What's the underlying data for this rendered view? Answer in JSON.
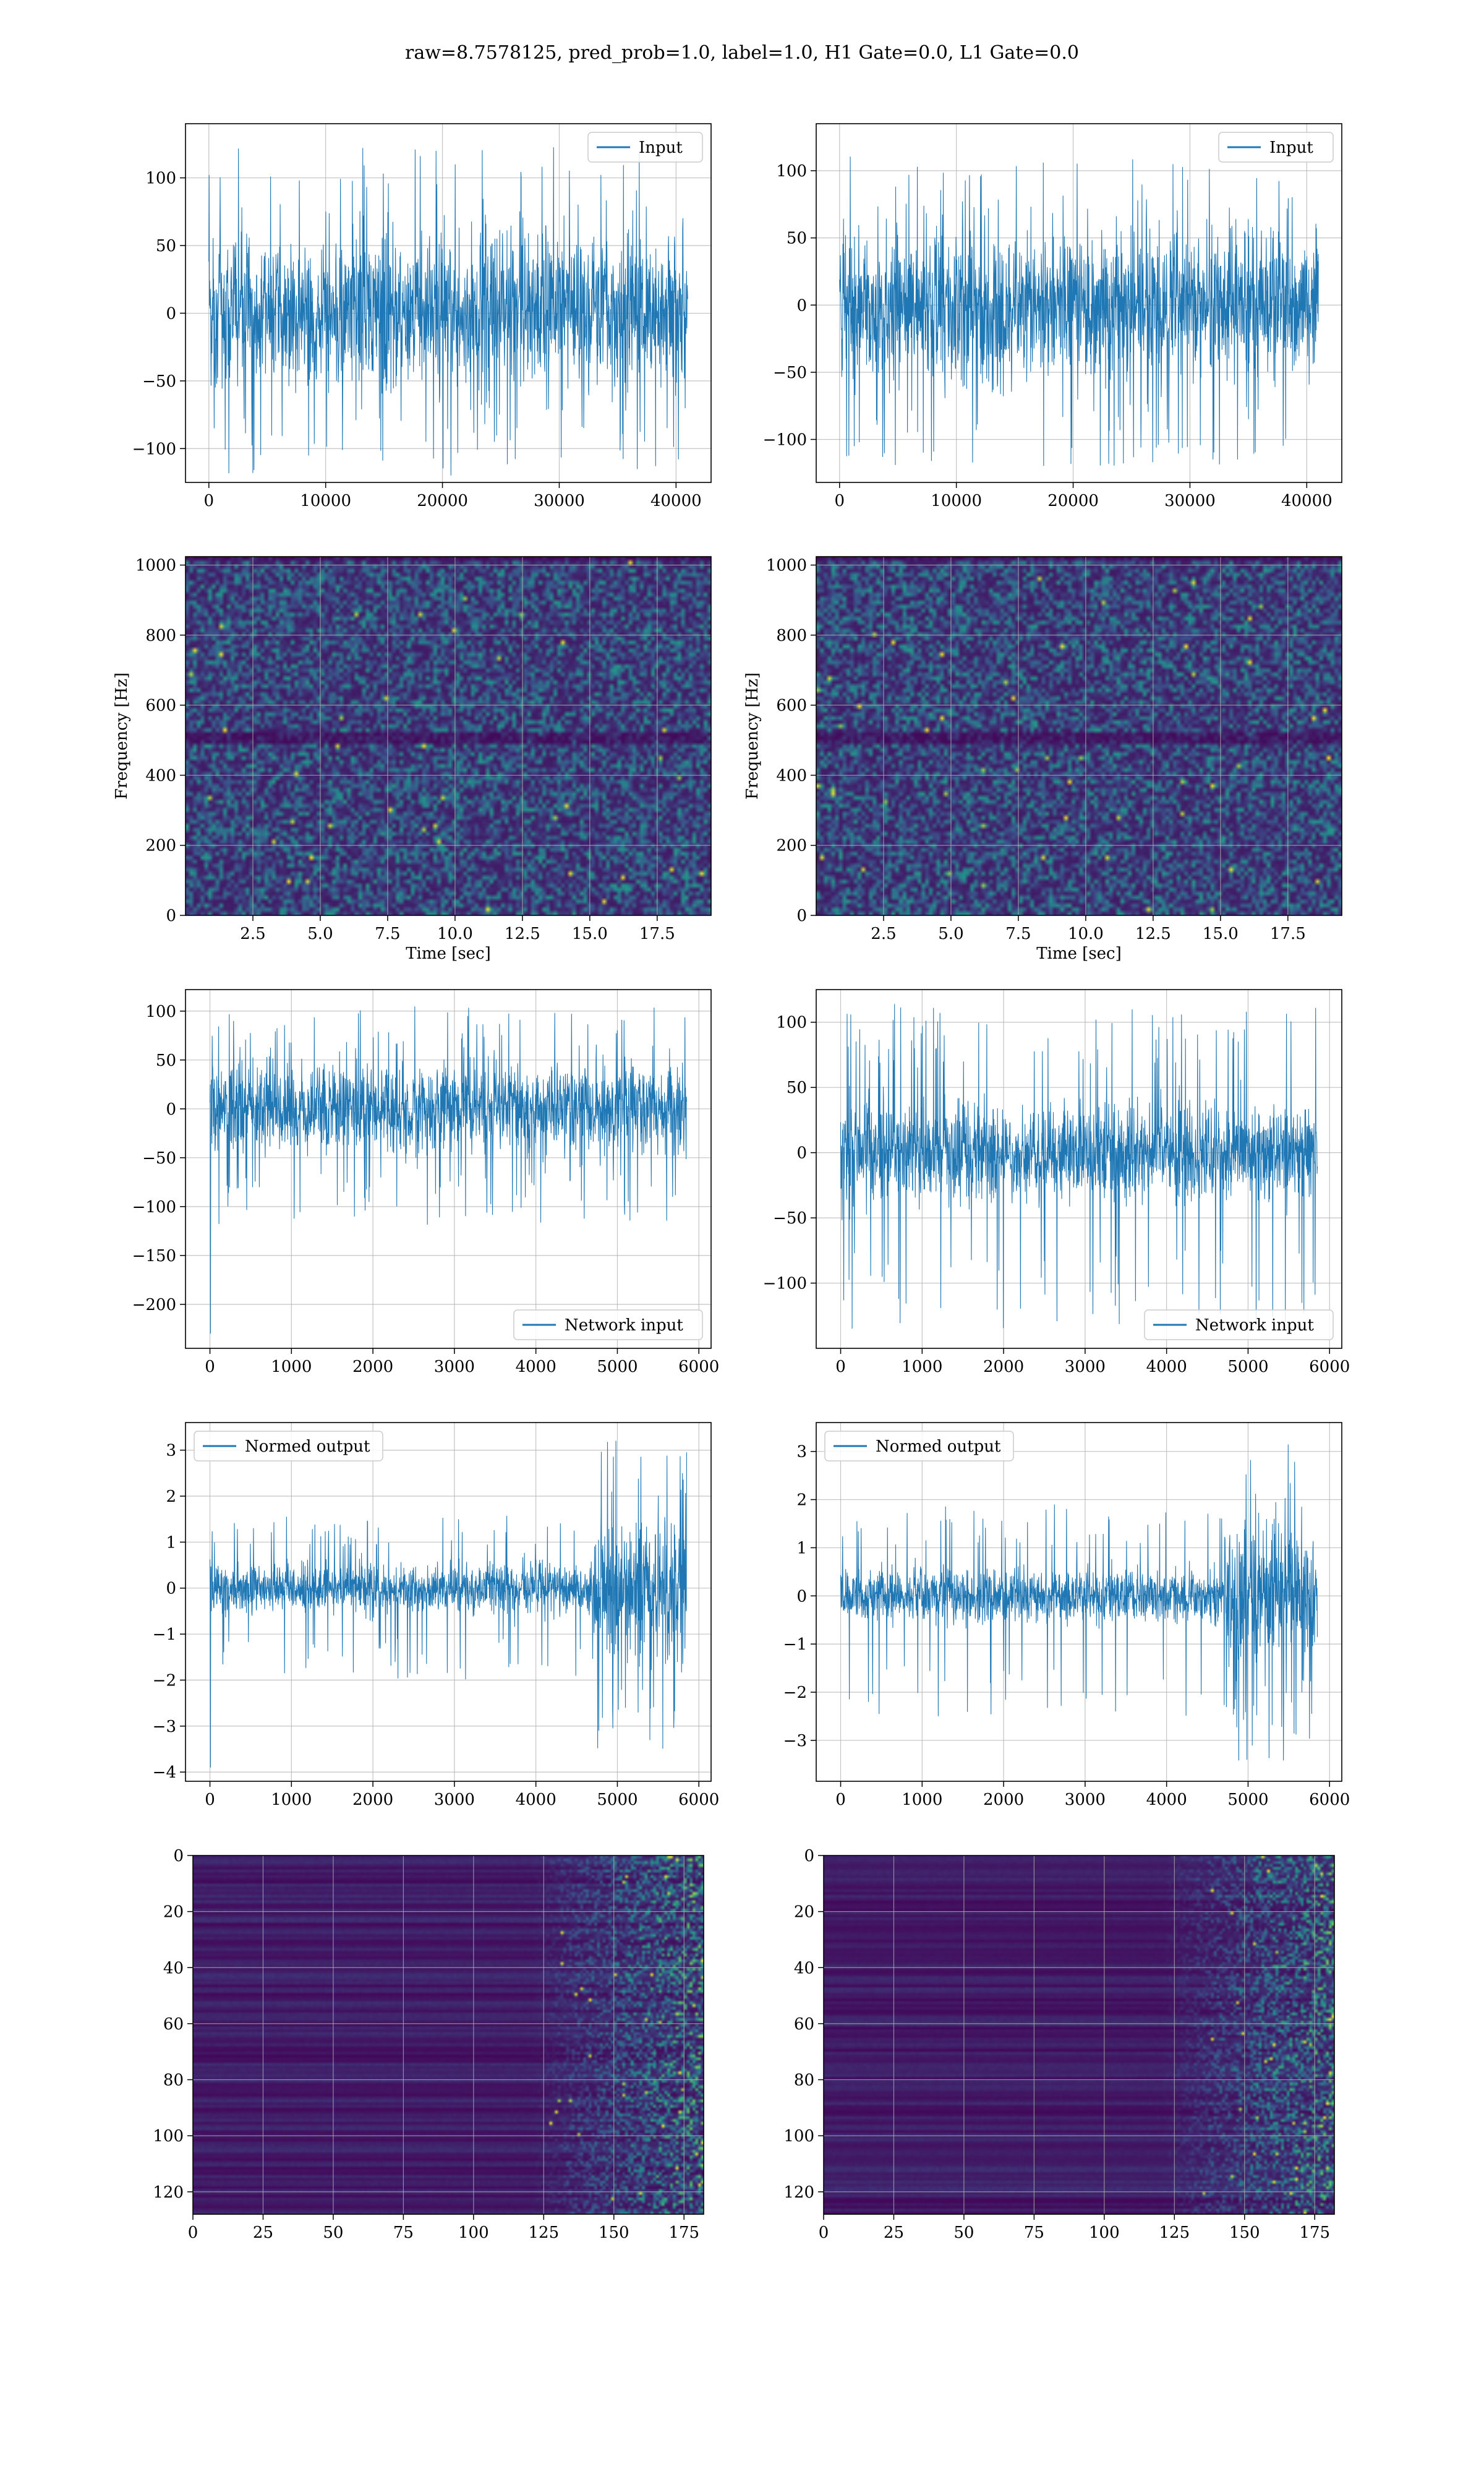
{
  "figure": {
    "title": "raw=8.7578125, pred_prob=1.0, label=1.0, H1 Gate=0.0, L1 Gate=0.0"
  },
  "colors": {
    "line": "#1f77b4",
    "grid": "#b0b0b0",
    "viridis_low": "#440154",
    "viridis_mid": "#21918c",
    "viridis_high": "#fde725"
  },
  "chart_data": [
    {
      "id": "raw-h1",
      "type": "line",
      "position": "row1-left",
      "series": [
        {
          "name": "Input",
          "envelope": {
            "x": [
              0,
              41000
            ],
            "core": [
              -60,
              60
            ],
            "peaks": [
              -120,
              128
            ]
          }
        }
      ],
      "xlim": [
        -2000,
        43000
      ],
      "ylim": [
        -125,
        140
      ],
      "xticks": [
        0,
        10000,
        20000,
        30000,
        40000
      ],
      "yticks": [
        -100,
        -50,
        0,
        50,
        100
      ],
      "legend": "top-right",
      "xlabel": "",
      "ylabel": "",
      "grid": true
    },
    {
      "id": "raw-l1",
      "type": "line",
      "position": "row1-right",
      "series": [
        {
          "name": "Input",
          "envelope": {
            "x": [
              0,
              41000
            ],
            "core": [
              -60,
              60
            ],
            "peaks": [
              -120,
              115
            ]
          }
        }
      ],
      "xlim": [
        -2000,
        43000
      ],
      "ylim": [
        -132,
        135
      ],
      "xticks": [
        0,
        10000,
        20000,
        30000,
        40000
      ],
      "yticks": [
        -100,
        -50,
        0,
        50,
        100
      ],
      "legend": "top-right",
      "xlabel": "",
      "ylabel": "",
      "grid": true
    },
    {
      "id": "spec-h1",
      "type": "heatmap",
      "position": "row2-left",
      "xlim": [
        0,
        19.5
      ],
      "ylim": [
        0,
        1024
      ],
      "xticks": [
        2.5,
        5.0,
        7.5,
        10.0,
        12.5,
        15.0,
        17.5
      ],
      "yticks": [
        0,
        200,
        400,
        600,
        800,
        1000
      ],
      "xlabel": "Time [sec]",
      "ylabel": "Frequency [Hz]",
      "colormap": "viridis",
      "grid": true,
      "features": {
        "dark_band_hz": 510
      }
    },
    {
      "id": "spec-l1",
      "type": "heatmap",
      "position": "row2-right",
      "xlim": [
        0,
        19.5
      ],
      "ylim": [
        0,
        1024
      ],
      "xticks": [
        2.5,
        5.0,
        7.5,
        10.0,
        12.5,
        15.0,
        17.5
      ],
      "yticks": [
        0,
        200,
        400,
        600,
        800,
        1000
      ],
      "xlabel": "Time [sec]",
      "ylabel": "Frequency [Hz]",
      "colormap": "viridis",
      "grid": true,
      "features": {
        "dark_band_hz": 510
      }
    },
    {
      "id": "net-h1",
      "type": "line",
      "position": "row3-left",
      "series": [
        {
          "name": "Network input",
          "envelope": {
            "x": [
              0,
              5850
            ],
            "core": [
              -50,
              50
            ],
            "peaks": [
              -120,
              105
            ],
            "spike": {
              "x": 0,
              "y": -230
            }
          }
        }
      ],
      "xlim": [
        -300,
        6150
      ],
      "ylim": [
        -245,
        122
      ],
      "xticks": [
        0,
        1000,
        2000,
        3000,
        4000,
        5000,
        6000
      ],
      "yticks": [
        -200,
        -150,
        -100,
        -50,
        0,
        50,
        100
      ],
      "legend": "bottom-right",
      "xlabel": "",
      "ylabel": "",
      "grid": true
    },
    {
      "id": "net-l1",
      "type": "line",
      "position": "row3-right",
      "series": [
        {
          "name": "Network input",
          "envelope": {
            "x": [
              0,
              5850
            ],
            "core": [
              -40,
              40
            ],
            "peaks": [
              -135,
              115
            ]
          }
        }
      ],
      "xlim": [
        -300,
        6150
      ],
      "ylim": [
        -150,
        125
      ],
      "xticks": [
        0,
        1000,
        2000,
        3000,
        4000,
        5000,
        6000
      ],
      "yticks": [
        -100,
        -50,
        0,
        50,
        100
      ],
      "legend": "bottom-right",
      "xlabel": "",
      "ylabel": "",
      "grid": true
    },
    {
      "id": "normed-h1",
      "type": "line",
      "position": "row4-left",
      "series": [
        {
          "name": "Normed output",
          "envelope": {
            "x": [
              0,
              5850
            ],
            "core": [
              -0.6,
              0.6
            ],
            "peaks": [
              -2.0,
              1.6
            ],
            "burst": {
              "x": [
                4700,
                5850
              ],
              "peak": 3.3,
              "trough": -3.5
            },
            "spike": {
              "x": 0,
              "y": -3.9
            }
          }
        }
      ],
      "xlim": [
        -300,
        6150
      ],
      "ylim": [
        -4.2,
        3.6
      ],
      "xticks": [
        0,
        1000,
        2000,
        3000,
        4000,
        5000,
        6000
      ],
      "yticks": [
        -4,
        -3,
        -2,
        -1,
        0,
        1,
        2,
        3
      ],
      "legend": "top-left",
      "xlabel": "",
      "ylabel": "",
      "grid": true
    },
    {
      "id": "normed-l1",
      "type": "line",
      "position": "row4-right",
      "series": [
        {
          "name": "Normed output",
          "envelope": {
            "x": [
              0,
              5850
            ],
            "core": [
              -0.6,
              0.6
            ],
            "peaks": [
              -2.5,
              1.9
            ],
            "burst": {
              "x": [
                4700,
                5850
              ],
              "peak": 3.3,
              "trough": -3.5
            }
          }
        }
      ],
      "xlim": [
        -300,
        6150
      ],
      "ylim": [
        -3.85,
        3.6
      ],
      "xticks": [
        0,
        1000,
        2000,
        3000,
        4000,
        5000,
        6000
      ],
      "yticks": [
        -3,
        -2,
        -1,
        0,
        1,
        2,
        3
      ],
      "legend": "top-left",
      "xlabel": "",
      "ylabel": "",
      "grid": true
    },
    {
      "id": "act-h1",
      "type": "heatmap",
      "position": "row5-left",
      "xlim": [
        0,
        182
      ],
      "ylim": [
        128,
        0
      ],
      "xticks": [
        0,
        25,
        50,
        75,
        100,
        125,
        150,
        175
      ],
      "yticks": [
        0,
        20,
        40,
        60,
        80,
        100,
        120
      ],
      "xlabel": "",
      "ylabel": "",
      "colormap": "viridis",
      "grid": true,
      "features": {
        "activity_onset_x": 120
      }
    },
    {
      "id": "act-l1",
      "type": "heatmap",
      "position": "row5-right",
      "xlim": [
        0,
        182
      ],
      "ylim": [
        128,
        0
      ],
      "xticks": [
        0,
        25,
        50,
        75,
        100,
        125,
        150,
        175
      ],
      "yticks": [
        0,
        20,
        40,
        60,
        80,
        100,
        120
      ],
      "xlabel": "",
      "ylabel": "",
      "colormap": "viridis",
      "grid": true,
      "features": {
        "activity_onset_x": 120
      }
    }
  ]
}
